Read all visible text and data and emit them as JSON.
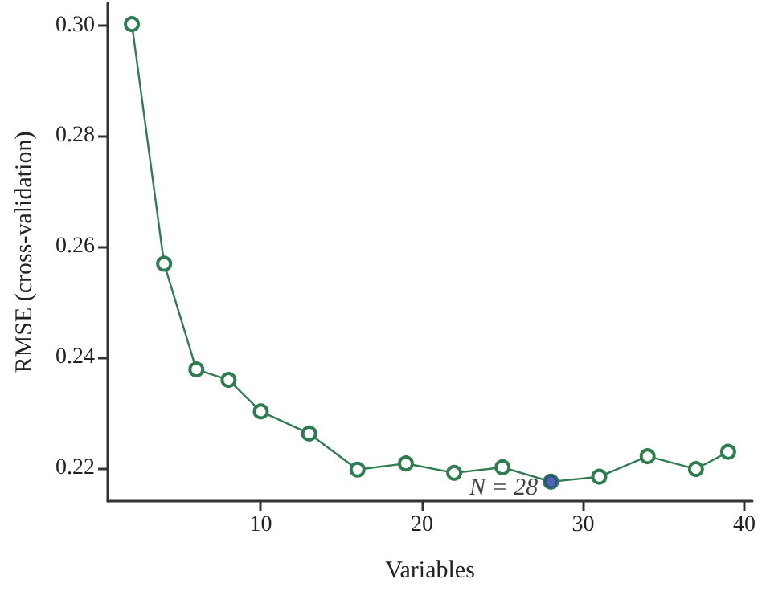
{
  "chart_data": {
    "type": "line",
    "xlabel": "Variables",
    "ylabel": "RMSE (cross-validation)",
    "xlim": [
      0.5,
      40.5
    ],
    "xticks": [
      10,
      20,
      30,
      40
    ],
    "ylim": [
      0.214,
      0.304
    ],
    "yticks": [
      0.22,
      0.24,
      0.26,
      0.28,
      {
        "value": 0.3,
        "label": "0.30"
      }
    ],
    "grid": false,
    "marker": "circle",
    "line_style": "solid",
    "series": [
      {
        "color": "#2e7d4f",
        "x": [
          2,
          4,
          6,
          8,
          10,
          13,
          16,
          19,
          22,
          25,
          28,
          31,
          34,
          37,
          39
        ],
        "values": [
          0.3002,
          0.2569,
          0.2378,
          0.2359,
          0.2302,
          0.2262,
          0.2197,
          0.2208,
          0.2191,
          0.2201,
          0.2175,
          0.2184,
          0.2221,
          0.2198,
          0.2229
        ]
      },
      {
        "type": "scatter",
        "color": "#1f3f99",
        "x": [
          28
        ],
        "values": [
          0.2175
        ]
      }
    ],
    "annotations": [
      {
        "text": "N = 28",
        "x": 28,
        "y": 0.2175
      }
    ]
  }
}
